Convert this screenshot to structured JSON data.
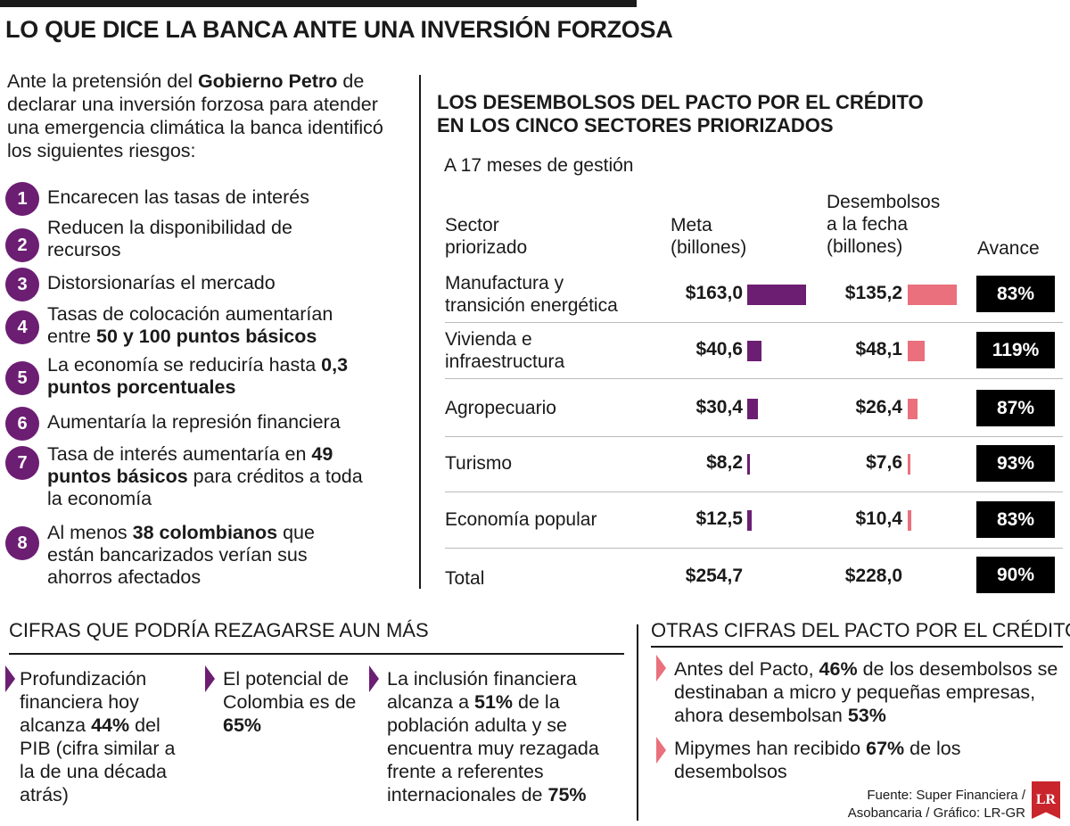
{
  "title": "LO QUE DICE LA BANCA ANTE UNA INVERSIÓN FORZOSA",
  "intro": {
    "pre": "Ante la pretensión del ",
    "bold": "Gobierno Petro",
    "post": " de declarar una inversión forzosa para atender una emergencia climática la banca identificó los siguientes riesgos:"
  },
  "risks": [
    {
      "n": "1",
      "a": "Encarecen las tasas de interés",
      "b": "",
      "c": ""
    },
    {
      "n": "2",
      "a": "Reducen la disponibilidad de recursos",
      "b": "",
      "c": ""
    },
    {
      "n": "3",
      "a": "Distorsionarías el mercado",
      "b": "",
      "c": ""
    },
    {
      "n": "4",
      "a": "Tasas de colocación aumentarían entre ",
      "b": "50 y 100 puntos básicos",
      "c": ""
    },
    {
      "n": "5",
      "a": "La economía se reduciría hasta ",
      "b": "0,3 puntos porcentuales",
      "c": ""
    },
    {
      "n": "6",
      "a": "Aumentaría la represión financiera",
      "b": "",
      "c": ""
    },
    {
      "n": "7",
      "a": "Tasa de interés aumentaría en ",
      "b": "49 puntos básicos",
      "c": " para créditos a toda la economía"
    },
    {
      "n": "8",
      "a": "Al menos ",
      "b": "38 colombianos",
      "c": " que están bancarizados verían sus ahorros afectados"
    }
  ],
  "chart_title": {
    "line1": "LOS DESEMBOLSOS DEL PACTO POR EL CRÉDITO",
    "line2": "EN LOS CINCO SECTORES PRIORIZADOS"
  },
  "chart_subtitle": "A 17 meses de gestión",
  "headers": {
    "sector1": "Sector",
    "sector2": "priorizado",
    "meta1": "Meta",
    "meta2": "(billones)",
    "des1": "Desembolsos",
    "des2": "a la fecha",
    "des3": "(billones)",
    "avance": "Avance"
  },
  "chart_data": {
    "type": "table",
    "columns": [
      "Sector priorizado",
      "Meta (billones)",
      "Desembolsos a la fecha (billones)",
      "Avance"
    ],
    "rows": [
      {
        "sector1": "Manufactura y",
        "sector2": "transición energética",
        "meta": 163.0,
        "meta_label": "$163,0",
        "des": 135.2,
        "des_label": "$135,2",
        "avance": "83%"
      },
      {
        "sector1": "Vivienda e",
        "sector2": "infraestructura",
        "meta": 40.6,
        "meta_label": "$40,6",
        "des": 48.1,
        "des_label": "$48,1",
        "avance": "119%"
      },
      {
        "sector1": "Agropecuario",
        "sector2": "",
        "meta": 30.4,
        "meta_label": "$30,4",
        "des": 26.4,
        "des_label": "$26,4",
        "avance": "87%"
      },
      {
        "sector1": "Turismo",
        "sector2": "",
        "meta": 8.2,
        "meta_label": "$8,2",
        "des": 7.6,
        "des_label": "$7,6",
        "avance": "93%"
      },
      {
        "sector1": "Economía popular",
        "sector2": "",
        "meta": 12.5,
        "meta_label": "$12,5",
        "des": 10.4,
        "des_label": "$10,4",
        "avance": "83%"
      }
    ],
    "total": {
      "label": "Total",
      "meta_label": "$254,7",
      "des_label": "$228,0",
      "avance": "90%"
    },
    "colors": {
      "meta": "#6c1e73",
      "des": "#e9707c"
    }
  },
  "cifras": {
    "title": "CIFRAS QUE PODRÍA REZAGARSE AUN MÁS",
    "items": [
      {
        "a": "Profundización financiera hoy alcanza ",
        "b": "44%",
        "c": " del PIB (cifra similar a la de una década atrás)",
        "d": "",
        "e": ""
      },
      {
        "a": "El potencial de Colombia es de ",
        "b": "65%",
        "c": "",
        "d": "",
        "e": ""
      },
      {
        "a": "La inclusión financiera alcanza a ",
        "b": "51%",
        "c": " de la población adulta y se encuentra muy rezagada frente a referentes internacionales de ",
        "d": "75%",
        "e": ""
      }
    ]
  },
  "otras": {
    "title": "OTRAS CIFRAS DEL PACTO POR EL CRÉDITO",
    "items": [
      {
        "a": "Antes del Pacto, ",
        "b": "46%",
        "c": " de los desembolsos se destinaban a micro y pequeñas empresas, ahora desembolsan ",
        "d": "53%",
        "e": ""
      },
      {
        "a": "Mipymes han recibido ",
        "b": "67%",
        "c": " de los desembolsos",
        "d": "",
        "e": ""
      }
    ]
  },
  "source": {
    "line1": "Fuente: Super Financiera /",
    "line2": "Asobancaria / Gráfico: LR-GR"
  },
  "logo": "LR"
}
